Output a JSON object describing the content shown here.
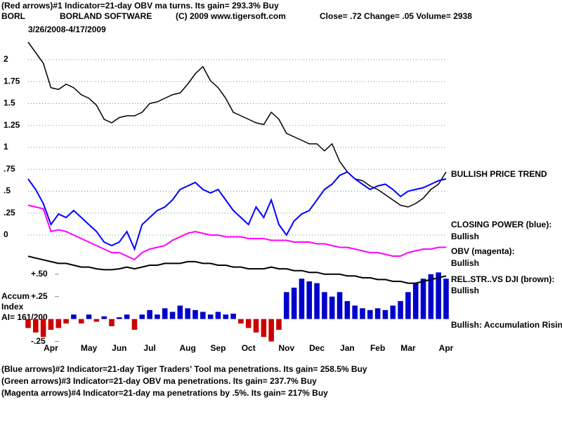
{
  "header": {
    "line1": "(Red arrows)#1 Indicator=21-day OBV ma turns. Its gain= 293.3% Buy",
    "symbol": "BORL",
    "company": "BORLAND SOFTWARE",
    "copyright": "(C) 2009 www.tigersoft.com",
    "quote": "Close=  .72  Change= .05 Volume= 2938",
    "date_range": "3/26/2008-4/17/2009",
    "accum_lines": [
      "Accum",
      "Index",
      "AI= 161/200"
    ]
  },
  "chart_data": [
    {
      "type": "line",
      "grid": true,
      "grid_color": "#6a9a6a",
      "ylim": [
        -0.3,
        2.4
      ],
      "yticks": [
        2,
        1.75,
        1.5,
        1.25,
        1,
        {
          "value": 0.75,
          "label": ".75"
        },
        {
          "value": 0.5,
          "label": ".5"
        },
        {
          "value": 0.25,
          "label": ".25"
        },
        0
      ],
      "categories": [
        null,
        null,
        null,
        "Apr",
        null,
        null,
        null,
        null,
        "May",
        null,
        null,
        null,
        "Jun",
        null,
        null,
        null,
        "Jul",
        null,
        null,
        null,
        null,
        "Aug",
        null,
        null,
        null,
        "Sep",
        null,
        null,
        null,
        "Oct",
        null,
        null,
        null,
        null,
        "Nov",
        null,
        null,
        null,
        "Dec",
        null,
        null,
        null,
        "Jan",
        null,
        null,
        null,
        "Feb",
        null,
        null,
        null,
        "Mar",
        null,
        null,
        null,
        null,
        "Apr"
      ],
      "series": [
        {
          "color": "#000000",
          "values": [
            2.2,
            2.08,
            1.96,
            1.68,
            1.66,
            1.72,
            1.68,
            1.6,
            1.56,
            1.48,
            1.32,
            1.28,
            1.34,
            1.36,
            1.36,
            1.4,
            1.5,
            1.52,
            1.56,
            1.6,
            1.62,
            1.72,
            1.84,
            1.92,
            1.76,
            1.68,
            1.56,
            1.4,
            1.36,
            1.32,
            1.28,
            1.26,
            1.4,
            1.32,
            1.16,
            1.12,
            1.08,
            1.04,
            1.04,
            0.96,
            1.04,
            0.84,
            0.72,
            0.64,
            0.62,
            0.56,
            0.52,
            0.46,
            0.4,
            0.34,
            0.32,
            0.36,
            0.42,
            0.52,
            0.58,
            0.72
          ]
        },
        {
          "color": "#0000ff",
          "values": [
            0.64,
            0.52,
            0.36,
            0.12,
            0.24,
            0.2,
            0.28,
            0.2,
            0.12,
            0.04,
            -0.08,
            -0.12,
            -0.08,
            0.04,
            -0.16,
            0.12,
            0.2,
            0.28,
            0.32,
            0.4,
            0.52,
            0.56,
            0.6,
            0.52,
            0.48,
            0.52,
            0.4,
            0.28,
            0.2,
            0.12,
            0.32,
            0.2,
            0.4,
            0.12,
            0,
            0.16,
            0.24,
            0.28,
            0.4,
            0.52,
            0.58,
            0.68,
            0.72,
            0.64,
            0.58,
            0.52,
            0.56,
            0.58,
            0.52,
            0.44,
            0.5,
            0.52,
            0.54,
            0.58,
            0.62,
            0.64
          ]
        },
        {
          "color": "#ff00ff",
          "values": [
            0.34,
            0.32,
            0.3,
            0.04,
            0.06,
            0.04,
            0,
            -0.04,
            -0.08,
            -0.12,
            -0.16,
            -0.2,
            -0.2,
            -0.24,
            -0.28,
            -0.2,
            -0.16,
            -0.14,
            -0.12,
            -0.06,
            -0.02,
            0.02,
            0.04,
            0.02,
            0,
            0,
            -0.02,
            -0.02,
            -0.02,
            -0.04,
            -0.04,
            -0.04,
            -0.06,
            -0.06,
            -0.06,
            -0.08,
            -0.08,
            -0.08,
            -0.1,
            -0.1,
            -0.12,
            -0.14,
            -0.14,
            -0.16,
            -0.18,
            -0.2,
            -0.2,
            -0.22,
            -0.24,
            -0.24,
            -0.2,
            -0.18,
            -0.16,
            -0.16,
            -0.14,
            -0.14
          ]
        }
      ],
      "annotations": [
        "BULLISH PRICE TREND",
        "CLOSING POWER (blue):",
        "Bullish",
        "OBV (magenta):",
        "Bullish",
        "REL.STR..VS DJI (brown):",
        "Bullish",
        "Bullish: Accumulation Rising"
      ]
    },
    {
      "type": "bar",
      "ylim": [
        -0.3,
        0.6
      ],
      "yticks": [
        {
          "value": 0.5,
          "label": "+.50"
        },
        {
          "value": 0.25,
          "label": "+.25"
        },
        {
          "value": -0.25,
          "label": "-.25"
        }
      ],
      "positive_color": "#0000cc",
      "negative_color": "#cc0000",
      "values": [
        -0.1,
        -0.15,
        -0.2,
        -0.12,
        -0.1,
        -0.05,
        0.05,
        -0.05,
        0.05,
        -0.03,
        0.03,
        -0.08,
        0.02,
        0.05,
        -0.12,
        0.05,
        0.1,
        0.05,
        0.12,
        0.08,
        0.15,
        0.12,
        0.1,
        0.08,
        0.05,
        0.08,
        0.05,
        0.06,
        -0.05,
        -0.1,
        -0.15,
        -0.2,
        -0.25,
        -0.12,
        0.3,
        0.35,
        0.45,
        0.42,
        0.4,
        0.3,
        0.25,
        0.3,
        0.2,
        0.15,
        0.12,
        0.1,
        0.12,
        0.1,
        0.15,
        0.2,
        0.3,
        0.4,
        0.45,
        0.5,
        0.52,
        0.45
      ],
      "line_color": "#000000",
      "line_values": [
        0.7,
        0.68,
        0.66,
        0.64,
        0.62,
        0.62,
        0.6,
        0.58,
        0.58,
        0.56,
        0.55,
        0.55,
        0.56,
        0.58,
        0.56,
        0.58,
        0.6,
        0.6,
        0.62,
        0.62,
        0.62,
        0.64,
        0.64,
        0.62,
        0.62,
        0.6,
        0.6,
        0.58,
        0.58,
        0.56,
        0.56,
        0.56,
        0.58,
        0.56,
        0.56,
        0.54,
        0.54,
        0.52,
        0.52,
        0.5,
        0.5,
        0.5,
        0.48,
        0.48,
        0.46,
        0.46,
        0.44,
        0.44,
        0.42,
        0.42,
        0.4,
        0.4,
        0.42,
        0.44,
        0.46,
        0.48
      ]
    }
  ],
  "footer": {
    "lines": [
      "(Blue arrows)#2 Indicator=21-day Tiger Traders' Tool ma penetrations. Its gain= 258.5% Buy",
      "(Green arrows)#3 Indicator=21-day OBV ma penetrations. Its gain= 237.7% Buy",
      "(Magenta arrows)#4 Indicator=21-day ma penetrations by .5%. Its gain= 217% Buy"
    ]
  }
}
